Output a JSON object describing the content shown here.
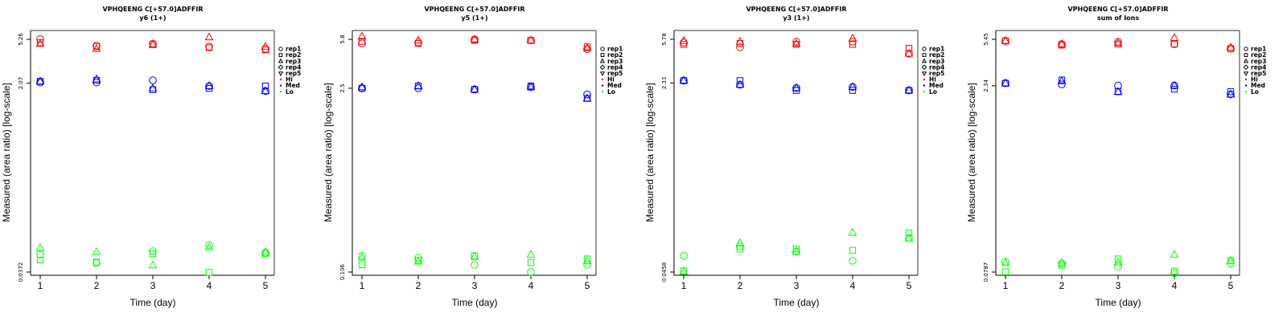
{
  "figure": {
    "peptide": "VPHQEENG C[+57.0]ADFFIR",
    "legend": {
      "shapes": [
        {
          "label": "rep1",
          "shape": "circle"
        },
        {
          "label": "rep2",
          "shape": "square"
        },
        {
          "label": "rep3",
          "shape": "triangle-up"
        },
        {
          "label": "rep4",
          "shape": "diamond"
        },
        {
          "label": "rep5",
          "shape": "triangle-down"
        }
      ],
      "groups": [
        {
          "label": "Hi",
          "color": "#ff0000"
        },
        {
          "label": "Med",
          "color": "#0000ff"
        },
        {
          "label": "Lo",
          "color": "#00ff00"
        }
      ]
    }
  },
  "chart_data": [
    {
      "type": "scatter",
      "title": "VPHQEENG C[+57.0]ADFFIR",
      "subtitle": "y6 (1+)",
      "xlabel": "Time (day)",
      "ylabel": "Measured (area ratio) [log-scale]",
      "yscale": "log",
      "x_ticks": [
        1,
        2,
        3,
        4,
        5
      ],
      "y_ticks": [
        "0.0372",
        "2.07",
        "5.26"
      ],
      "y_tick_values": [
        0.0372,
        2.07,
        5.26
      ],
      "ylim": [
        0.033,
        6.2
      ],
      "legend_position": "right",
      "series": [
        {
          "group": "Hi",
          "rep": "rep1",
          "x": [
            1,
            2,
            3,
            4,
            5
          ],
          "y": [
            5.3,
            4.6,
            4.8,
            4.5,
            4.3
          ]
        },
        {
          "group": "Hi",
          "rep": "rep2",
          "x": [
            1,
            2,
            3,
            4,
            5
          ],
          "y": [
            4.9,
            4.5,
            4.7,
            4.4,
            4.2
          ]
        },
        {
          "group": "Hi",
          "rep": "rep3",
          "x": [
            1,
            2,
            3,
            4,
            5
          ],
          "y": [
            4.8,
            4.3,
            4.7,
            5.5,
            4.5
          ]
        },
        {
          "group": "Med",
          "rep": "rep1",
          "x": [
            1,
            2,
            3,
            4,
            5
          ],
          "y": [
            2.1,
            2.1,
            2.2,
            1.95,
            1.75
          ]
        },
        {
          "group": "Med",
          "rep": "rep2",
          "x": [
            1,
            2,
            3,
            4,
            5
          ],
          "y": [
            2.15,
            2.2,
            1.8,
            1.85,
            1.95
          ]
        },
        {
          "group": "Med",
          "rep": "rep3",
          "x": [
            1,
            2,
            3,
            4,
            5
          ],
          "y": [
            2.15,
            2.25,
            1.85,
            1.95,
            1.75
          ]
        },
        {
          "group": "Lo",
          "rep": "rep1",
          "x": [
            1,
            2,
            3,
            4,
            5
          ],
          "y": [
            0.054,
            0.045,
            0.058,
            0.066,
            0.056
          ]
        },
        {
          "group": "Lo",
          "rep": "rep2",
          "x": [
            1,
            2,
            3,
            4,
            5
          ],
          "y": [
            0.048,
            0.046,
            0.055,
            0.037,
            0.055
          ]
        },
        {
          "group": "Lo",
          "rep": "rep3",
          "x": [
            1,
            2,
            3,
            4,
            5
          ],
          "y": [
            0.062,
            0.057,
            0.043,
            0.063,
            0.057
          ]
        }
      ]
    },
    {
      "type": "scatter",
      "title": "VPHQEENG C[+57.0]ADFFIR",
      "subtitle": "y5 (1+)",
      "xlabel": "Time (day)",
      "ylabel": "Measured (area ratio) [log-scale]",
      "yscale": "log",
      "x_ticks": [
        1,
        2,
        3,
        4,
        5
      ],
      "y_ticks": [
        "0.106",
        "2.5",
        "5.8"
      ],
      "y_tick_values": [
        0.106,
        2.5,
        5.8
      ],
      "ylim": [
        0.095,
        6.8
      ],
      "legend_position": "right",
      "series": [
        {
          "group": "Hi",
          "rep": "rep1",
          "x": [
            1,
            2,
            3,
            4,
            5
          ],
          "y": [
            5.4,
            5.5,
            5.8,
            5.7,
            4.9
          ]
        },
        {
          "group": "Hi",
          "rep": "rep2",
          "x": [
            1,
            2,
            3,
            4,
            5
          ],
          "y": [
            5.6,
            5.4,
            5.7,
            5.7,
            5.1
          ]
        },
        {
          "group": "Hi",
          "rep": "rep3",
          "x": [
            1,
            2,
            3,
            4,
            5
          ],
          "y": [
            6.1,
            5.7,
            5.8,
            5.7,
            5.0
          ]
        },
        {
          "group": "Med",
          "rep": "rep1",
          "x": [
            1,
            2,
            3,
            4,
            5
          ],
          "y": [
            2.5,
            2.5,
            2.45,
            2.55,
            2.25
          ]
        },
        {
          "group": "Med",
          "rep": "rep2",
          "x": [
            1,
            2,
            3,
            4,
            5
          ],
          "y": [
            2.5,
            2.6,
            2.45,
            2.6,
            2.1
          ]
        },
        {
          "group": "Med",
          "rep": "rep3",
          "x": [
            1,
            2,
            3,
            4,
            5
          ],
          "y": [
            2.55,
            2.6,
            2.45,
            2.55,
            2.1
          ]
        },
        {
          "group": "Lo",
          "rep": "rep1",
          "x": [
            1,
            2,
            3,
            4,
            5
          ],
          "y": [
            0.14,
            0.135,
            0.12,
            0.106,
            0.12
          ]
        },
        {
          "group": "Lo",
          "rep": "rep2",
          "x": [
            1,
            2,
            3,
            4,
            5
          ],
          "y": [
            0.12,
            0.13,
            0.14,
            0.125,
            0.133
          ]
        },
        {
          "group": "Lo",
          "rep": "rep3",
          "x": [
            1,
            2,
            3,
            4,
            5
          ],
          "y": [
            0.136,
            0.127,
            0.138,
            0.143,
            0.128
          ]
        }
      ]
    },
    {
      "type": "scatter",
      "title": "VPHQEENG C[+57.0]ADFFIR",
      "subtitle": "y3 (1+)",
      "xlabel": "Time (day)",
      "ylabel": "Measured (area ratio) [log-scale]",
      "yscale": "log",
      "x_ticks": [
        1,
        2,
        3,
        4,
        5
      ],
      "y_ticks": [
        "0.0458",
        "2.33",
        "5.78"
      ],
      "y_tick_values": [
        0.0458,
        2.33,
        5.78
      ],
      "ylim": [
        0.041,
        6.8
      ],
      "legend_position": "right",
      "series": [
        {
          "group": "Hi",
          "rep": "rep1",
          "x": [
            1,
            2,
            3,
            4,
            5
          ],
          "y": [
            5.4,
            4.9,
            5.5,
            5.5,
            4.3
          ]
        },
        {
          "group": "Hi",
          "rep": "rep2",
          "x": [
            1,
            2,
            3,
            4,
            5
          ],
          "y": [
            5.2,
            5.3,
            5.2,
            5.2,
            4.8
          ]
        },
        {
          "group": "Hi",
          "rep": "rep3",
          "x": [
            1,
            2,
            3,
            4,
            5
          ],
          "y": [
            5.6,
            5.5,
            5.3,
            5.9,
            4.3
          ]
        },
        {
          "group": "Med",
          "rep": "rep1",
          "x": [
            1,
            2,
            3,
            4,
            5
          ],
          "y": [
            2.45,
            2.25,
            2.1,
            2.15,
            2.0
          ]
        },
        {
          "group": "Med",
          "rep": "rep2",
          "x": [
            1,
            2,
            3,
            4,
            5
          ],
          "y": [
            2.45,
            2.45,
            2.0,
            2.0,
            2.0
          ]
        },
        {
          "group": "Med",
          "rep": "rep3",
          "x": [
            1,
            2,
            3,
            4,
            5
          ],
          "y": [
            2.45,
            2.25,
            2.1,
            2.15,
            2.0
          ]
        },
        {
          "group": "Lo",
          "rep": "rep1",
          "x": [
            1,
            2,
            3,
            4,
            5
          ],
          "y": [
            0.064,
            0.078,
            0.07,
            0.058,
            0.093
          ]
        },
        {
          "group": "Lo",
          "rep": "rep2",
          "x": [
            1,
            2,
            3,
            4,
            5
          ],
          "y": [
            0.047,
            0.074,
            0.074,
            0.072,
            0.103
          ]
        },
        {
          "group": "Lo",
          "rep": "rep3",
          "x": [
            1,
            2,
            3,
            4,
            5
          ],
          "y": [
            0.046,
            0.084,
            0.07,
            0.104,
            0.092
          ]
        }
      ]
    },
    {
      "type": "scatter",
      "title": "VPHQEENG C[+57.0]ADFFIR",
      "subtitle": "sum of Ions",
      "xlabel": "Time (day)",
      "ylabel": "Measured (area ratio) [log-scale]",
      "yscale": "log",
      "x_ticks": [
        1,
        2,
        3,
        4,
        5
      ],
      "y_ticks": [
        "0.0787",
        "2.34",
        "5.45"
      ],
      "y_tick_values": [
        0.0787,
        2.34,
        5.45
      ],
      "ylim": [
        0.071,
        6.4
      ],
      "legend_position": "right",
      "series": [
        {
          "group": "Hi",
          "rep": "rep1",
          "x": [
            1,
            2,
            3,
            4,
            5
          ],
          "y": [
            5.3,
            5.0,
            5.2,
            5.0,
            4.6
          ]
        },
        {
          "group": "Hi",
          "rep": "rep2",
          "x": [
            1,
            2,
            3,
            4,
            5
          ],
          "y": [
            5.3,
            4.9,
            5.0,
            5.0,
            4.6
          ]
        },
        {
          "group": "Hi",
          "rep": "rep3",
          "x": [
            1,
            2,
            3,
            4,
            5
          ],
          "y": [
            5.3,
            5.0,
            5.1,
            5.6,
            4.7
          ]
        },
        {
          "group": "Med",
          "rep": "rep1",
          "x": [
            1,
            2,
            3,
            4,
            5
          ],
          "y": [
            2.45,
            2.4,
            2.35,
            2.35,
            2.0
          ]
        },
        {
          "group": "Med",
          "rep": "rep2",
          "x": [
            1,
            2,
            3,
            4,
            5
          ],
          "y": [
            2.45,
            2.6,
            2.1,
            2.2,
            2.1
          ]
        },
        {
          "group": "Med",
          "rep": "rep3",
          "x": [
            1,
            2,
            3,
            4,
            5
          ],
          "y": [
            2.45,
            2.55,
            2.1,
            2.35,
            2.0
          ]
        },
        {
          "group": "Lo",
          "rep": "rep1",
          "x": [
            1,
            2,
            3,
            4,
            5
          ],
          "y": [
            0.095,
            0.092,
            0.087,
            0.077,
            0.092
          ]
        },
        {
          "group": "Lo",
          "rep": "rep2",
          "x": [
            1,
            2,
            3,
            4,
            5
          ],
          "y": [
            0.079,
            0.089,
            0.1,
            0.08,
            0.097
          ]
        },
        {
          "group": "Lo",
          "rep": "rep3",
          "x": [
            1,
            2,
            3,
            4,
            5
          ],
          "y": [
            0.093,
            0.093,
            0.094,
            0.108,
            0.097
          ]
        }
      ]
    }
  ]
}
